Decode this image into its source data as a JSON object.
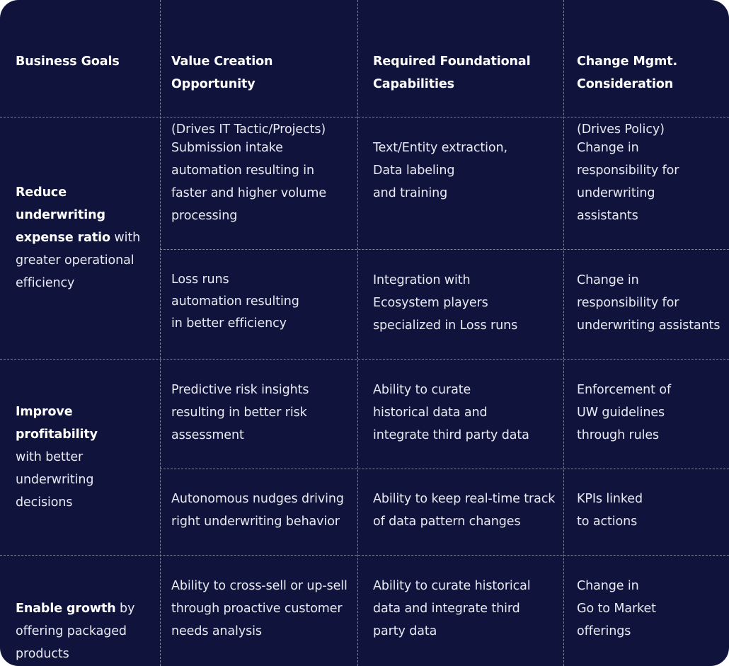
{
  "colors": {
    "background": "#10143d",
    "divider": "#7d8199",
    "text": "#e9eaf2"
  },
  "header": [
    {
      "title": "Business Goals",
      "subtitle": ""
    },
    {
      "title": "Value Creation\nOpportunity",
      "subtitle": "(Drives IT Tactic/Projects)"
    },
    {
      "title": "Required Foundational\nCapabilities",
      "subtitle": ""
    },
    {
      "title": "Change Mgmt.\nConsideration",
      "subtitle": "(Drives Policy)"
    }
  ],
  "goals": [
    {
      "bold": "Reduce underwriting\nexpense ratio",
      "rest": " with\ngreater operational\nefficiency"
    },
    {
      "bold": "Improve\nprofitability",
      "rest": "\nwith better\nunderwriting\ndecisions"
    },
    {
      "bold": "Enable growth",
      "rest": " by\noffering packaged\nproducts"
    }
  ],
  "rows": [
    {
      "value": "Submission intake\nautomation resulting in\nfaster and higher volume\nprocessing",
      "capability": "Text/Entity extraction,\nData labeling\nand training",
      "change": "Change in\nresponsibility for\nunderwriting\nassistants"
    },
    {
      "value": "Loss runs\nautomation resulting\nin better efficiency",
      "capability": "Integration with\nEcosystem players\nspecialized in Loss runs",
      "change": "Change in\nresponsibility for\nunderwriting assistants"
    },
    {
      "value": "Predictive risk insights\nresulting in better risk\nassessment",
      "capability": "Ability to curate\nhistorical data and\nintegrate third party data",
      "change": "Enforcement of\nUW guidelines\nthrough rules"
    },
    {
      "value": "Autonomous nudges driving\nright underwriting behavior",
      "capability": "Ability to keep real-time track\nof data pattern changes",
      "change": "KPIs linked\nto actions"
    },
    {
      "value": "Ability to cross-sell or up-sell\nthrough proactive customer\nneeds analysis",
      "capability": "Ability to curate historical\ndata and integrate third\nparty data",
      "change": "Change in\nGo to Market\nofferings"
    }
  ]
}
